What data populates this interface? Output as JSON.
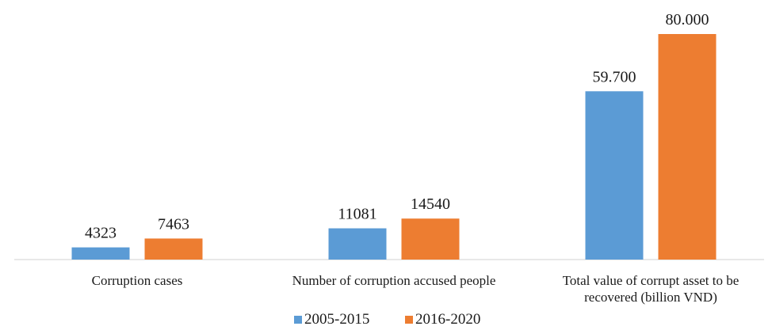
{
  "chart_data": {
    "type": "bar",
    "categories": [
      [
        "Corruption cases"
      ],
      [
        "Number of corruption accused people"
      ],
      [
        "Total value of corrupt asset to be",
        "recovered  (billion VND)"
      ]
    ],
    "series": [
      {
        "name": "2005-2015",
        "color": "#5b9bd5",
        "values": [
          4323,
          11081,
          59700
        ],
        "labels": [
          "4323",
          "11081",
          "59.700"
        ]
      },
      {
        "name": "2016-2020",
        "color": "#ed7d31",
        "values": [
          7463,
          14540,
          80000
        ],
        "labels": [
          "7463",
          "14540",
          "80.000"
        ]
      }
    ],
    "ylim": [
      0,
      80000
    ],
    "grid": false,
    "y_axis_visible": false,
    "legend_position": "bottom-center"
  }
}
